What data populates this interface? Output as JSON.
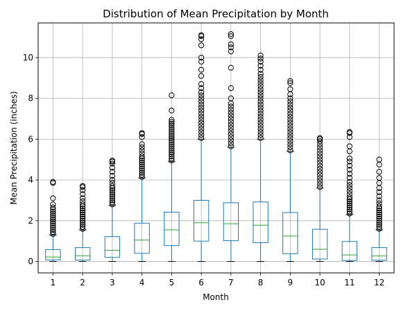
{
  "chart_data": {
    "type": "box",
    "title": "Distribution of Mean Precipitation by Month",
    "xlabel": "Month",
    "ylabel": "Mean Precipitation (inches)",
    "categories": [
      "1",
      "2",
      "3",
      "4",
      "5",
      "6",
      "7",
      "8",
      "9",
      "10",
      "11",
      "12"
    ],
    "ylim": [
      -0.56,
      11.7
    ],
    "yticks": [
      0,
      2,
      4,
      6,
      8,
      10
    ],
    "grid": true,
    "colors": {
      "box": "#1f77b4",
      "median": "#2ca02c",
      "grid": "#b0b0b0",
      "flier": "#000000"
    },
    "boxes": [
      {
        "month": "1",
        "whislo": 0,
        "q1": 0.08,
        "med": 0.22,
        "q3": 0.58,
        "whishi": 1.3,
        "fliers": [
          1.35,
          1.45,
          1.55,
          1.65,
          1.75,
          1.85,
          1.95,
          2.05,
          2.15,
          2.25,
          2.35,
          2.45,
          2.55,
          2.65,
          2.8,
          3.1,
          3.85,
          3.9
        ]
      },
      {
        "month": "2",
        "whislo": 0,
        "q1": 0.07,
        "med": 0.28,
        "q3": 0.68,
        "whishi": 1.55,
        "fliers": [
          1.6,
          1.7,
          1.8,
          1.9,
          2.0,
          2.1,
          2.2,
          2.3,
          2.4,
          2.5,
          2.6,
          2.7,
          2.8,
          2.95,
          3.1,
          3.3,
          3.5,
          3.65,
          3.7
        ]
      },
      {
        "month": "3",
        "whislo": 0,
        "q1": 0.2,
        "med": 0.55,
        "q3": 1.22,
        "whishi": 2.75,
        "fliers": [
          2.8,
          2.9,
          3.0,
          3.1,
          3.2,
          3.3,
          3.4,
          3.5,
          3.6,
          3.7,
          3.85,
          4.0,
          4.2,
          4.4,
          4.6,
          4.8,
          4.9,
          4.95
        ]
      },
      {
        "month": "4",
        "whislo": 0,
        "q1": 0.4,
        "med": 1.05,
        "q3": 1.88,
        "whishi": 4.1,
        "fliers": [
          4.15,
          4.25,
          4.35,
          4.45,
          4.55,
          4.65,
          4.75,
          4.85,
          4.95,
          5.05,
          5.15,
          5.3,
          5.45,
          5.6,
          5.75,
          6.1,
          6.25,
          6.3
        ]
      },
      {
        "month": "5",
        "whislo": 0,
        "q1": 0.78,
        "med": 1.55,
        "q3": 2.42,
        "whishi": 4.9,
        "fliers": [
          4.95,
          5.05,
          5.15,
          5.25,
          5.35,
          5.45,
          5.55,
          5.65,
          5.75,
          5.85,
          5.95,
          6.05,
          6.15,
          6.25,
          6.35,
          6.45,
          6.55,
          6.65,
          6.75,
          6.85,
          6.95,
          7.4,
          8.15
        ]
      },
      {
        "month": "6",
        "whislo": 0,
        "q1": 1.0,
        "med": 1.9,
        "q3": 3.0,
        "whishi": 6.0,
        "fliers": [
          6.05,
          6.2,
          6.35,
          6.5,
          6.65,
          6.8,
          6.95,
          7.1,
          7.25,
          7.4,
          7.55,
          7.7,
          7.85,
          8.0,
          8.15,
          8.3,
          8.5,
          8.7,
          9.1,
          9.4,
          9.8,
          10.0,
          10.6,
          10.9,
          11.05,
          11.1
        ]
      },
      {
        "month": "7",
        "whislo": 0,
        "q1": 1.02,
        "med": 1.85,
        "q3": 2.88,
        "whishi": 5.6,
        "fliers": [
          5.65,
          5.8,
          5.95,
          6.1,
          6.25,
          6.4,
          6.55,
          6.7,
          6.85,
          7.0,
          7.15,
          7.3,
          7.45,
          7.6,
          7.75,
          8.0,
          8.5,
          9.5,
          10.3,
          10.5,
          10.65,
          11.05,
          11.15
        ]
      },
      {
        "month": "8",
        "whislo": 0,
        "q1": 0.92,
        "med": 1.78,
        "q3": 2.92,
        "whishi": 6.0,
        "fliers": [
          6.05,
          6.2,
          6.35,
          6.5,
          6.65,
          6.8,
          6.95,
          7.1,
          7.25,
          7.4,
          7.55,
          7.7,
          7.85,
          8.0,
          8.15,
          8.3,
          8.45,
          8.6,
          8.75,
          8.9,
          9.05,
          9.2,
          9.4,
          9.6,
          9.8,
          9.95,
          10.1
        ]
      },
      {
        "month": "9",
        "whislo": 0,
        "q1": 0.38,
        "med": 1.25,
        "q3": 2.4,
        "whishi": 5.4,
        "fliers": [
          5.45,
          5.6,
          5.75,
          5.9,
          6.05,
          6.2,
          6.35,
          6.5,
          6.65,
          6.8,
          6.95,
          7.1,
          7.25,
          7.4,
          7.55,
          7.7,
          7.85,
          8.0,
          8.2,
          8.45,
          8.75,
          8.85
        ]
      },
      {
        "month": "10",
        "whislo": 0,
        "q1": 0.12,
        "med": 0.6,
        "q3": 1.58,
        "whishi": 3.6,
        "fliers": [
          3.65,
          3.8,
          3.95,
          4.1,
          4.25,
          4.4,
          4.55,
          4.7,
          4.85,
          5.0,
          5.15,
          5.3,
          5.45,
          5.6,
          5.75,
          5.9,
          6.0,
          6.05
        ]
      },
      {
        "month": "11",
        "whislo": 0,
        "q1": 0.05,
        "med": 0.32,
        "q3": 0.98,
        "whishi": 2.3,
        "fliers": [
          2.35,
          2.45,
          2.55,
          2.65,
          2.75,
          2.85,
          2.95,
          3.05,
          3.15,
          3.3,
          3.45,
          3.6,
          3.75,
          3.9,
          4.1,
          4.3,
          4.5,
          4.7,
          4.9,
          5.05,
          5.4,
          5.65,
          6.1,
          6.3,
          6.35
        ]
      },
      {
        "month": "12",
        "whislo": 0,
        "q1": 0.06,
        "med": 0.27,
        "q3": 0.68,
        "whishi": 1.55,
        "fliers": [
          1.6,
          1.7,
          1.8,
          1.9,
          2.0,
          2.1,
          2.2,
          2.3,
          2.4,
          2.5,
          2.6,
          2.7,
          2.85,
          3.0,
          3.2,
          3.4,
          3.6,
          3.85,
          4.1,
          4.4,
          4.75,
          5.0
        ]
      }
    ]
  }
}
